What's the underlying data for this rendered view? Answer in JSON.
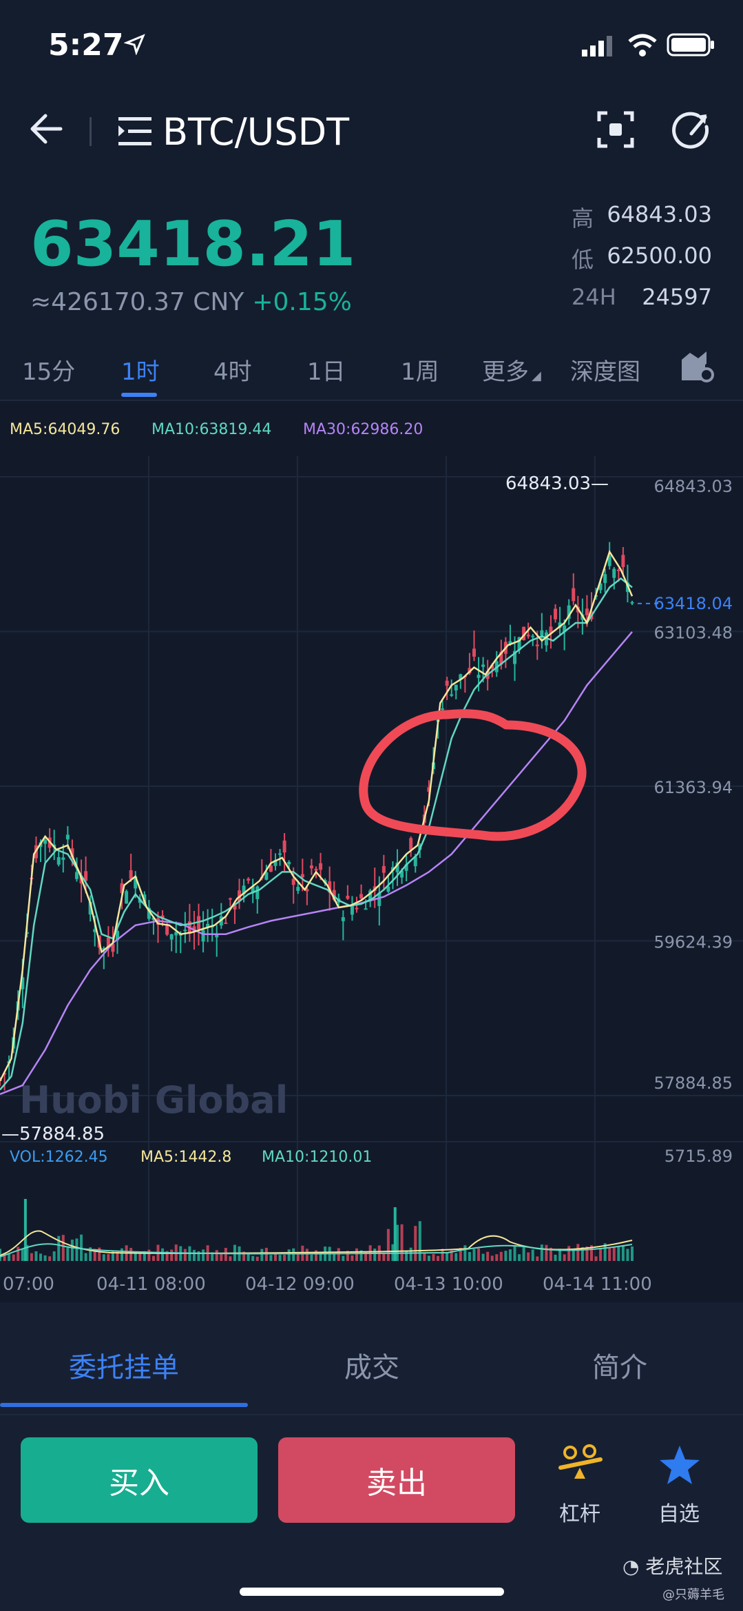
{
  "status_bar": {
    "time": "5:27"
  },
  "header": {
    "pair": "BTC/USDT"
  },
  "ticker": {
    "price": "63418.21",
    "cny": "≈426170.37 CNY",
    "change": "+0.15%",
    "high_label": "高",
    "high": "64843.03",
    "low_label": "低",
    "low": "62500.00",
    "vol_label": "24H",
    "vol": "24597"
  },
  "timeframes": [
    "15分",
    "1时",
    "4时",
    "1日",
    "1周",
    "更多",
    "深度图"
  ],
  "active_timeframe": 1,
  "ma_legend": {
    "ma5": "MA5:64049.76",
    "ma10": "MA10:63819.44",
    "ma30": "MA30:62986.20"
  },
  "watermark": "Huobi Global",
  "vol_legend": {
    "vol": "VOL:1262.45",
    "ma5": "MA5:1442.8",
    "ma10": "MA10:1210.01"
  },
  "chart_data": {
    "type": "candlestick",
    "y_ticks": [
      "64843.03",
      "63103.48",
      "61363.94",
      "59624.39",
      "57884.85"
    ],
    "y_ticks_values": [
      64843.03,
      63103.48,
      61363.94,
      59624.39,
      57884.85
    ],
    "last_price_label": "63418.04",
    "last_price": 63418.04,
    "high_marker": "64843.03",
    "low_marker": "57884.85",
    "vol_axis_max": "5715.89",
    "x_ticks": [
      "07:00",
      "04-11 08:00",
      "04-12 09:00",
      "04-13 10:00",
      "04-14 11:00"
    ],
    "ylim": [
      57884.85,
      64843.03
    ],
    "colors": {
      "up": "#26b59c",
      "down": "#e0495f",
      "ma5": "#f6e79a",
      "ma10": "#62d8c2",
      "ma30": "#b784f5",
      "annotation": "#f04a57"
    },
    "ma5_path": [
      [
        0,
        58050
      ],
      [
        8,
        58300
      ],
      [
        16,
        59300
      ],
      [
        24,
        60600
      ],
      [
        32,
        60800
      ],
      [
        40,
        60650
      ],
      [
        48,
        60700
      ],
      [
        56,
        60400
      ],
      [
        64,
        60050
      ],
      [
        72,
        59500
      ],
      [
        80,
        59600
      ],
      [
        88,
        60250
      ],
      [
        96,
        60350
      ],
      [
        104,
        60000
      ],
      [
        112,
        59820
      ],
      [
        120,
        59800
      ],
      [
        128,
        59700
      ],
      [
        136,
        59720
      ],
      [
        144,
        59760
      ],
      [
        152,
        59800
      ],
      [
        160,
        59900
      ],
      [
        168,
        60100
      ],
      [
        176,
        60200
      ],
      [
        184,
        60300
      ],
      [
        192,
        60500
      ],
      [
        200,
        60560
      ],
      [
        208,
        60350
      ],
      [
        216,
        60200
      ],
      [
        224,
        60400
      ],
      [
        232,
        60250
      ],
      [
        240,
        60000
      ],
      [
        248,
        60020
      ],
      [
        256,
        60080
      ],
      [
        264,
        60180
      ],
      [
        272,
        60300
      ],
      [
        280,
        60450
      ],
      [
        288,
        60600
      ],
      [
        296,
        60700
      ],
      [
        304,
        61200
      ],
      [
        312,
        62300
      ],
      [
        320,
        62500
      ],
      [
        328,
        62580
      ],
      [
        336,
        62700
      ],
      [
        344,
        62620
      ],
      [
        352,
        62800
      ],
      [
        360,
        62950
      ],
      [
        368,
        63000
      ],
      [
        376,
        63150
      ],
      [
        384,
        63000
      ],
      [
        392,
        63100
      ],
      [
        400,
        63200
      ],
      [
        408,
        63400
      ],
      [
        416,
        63200
      ],
      [
        424,
        63600
      ],
      [
        432,
        64000
      ],
      [
        440,
        63800
      ],
      [
        448,
        63500
      ]
    ],
    "ma10_path": [
      [
        0,
        57950
      ],
      [
        8,
        58100
      ],
      [
        16,
        58700
      ],
      [
        24,
        59800
      ],
      [
        32,
        60500
      ],
      [
        40,
        60650
      ],
      [
        48,
        60600
      ],
      [
        56,
        60400
      ],
      [
        64,
        60200
      ],
      [
        72,
        59700
      ],
      [
        80,
        59650
      ],
      [
        88,
        59950
      ],
      [
        96,
        60150
      ],
      [
        104,
        60000
      ],
      [
        112,
        59900
      ],
      [
        120,
        59850
      ],
      [
        128,
        59800
      ],
      [
        136,
        59820
      ],
      [
        144,
        59850
      ],
      [
        152,
        59900
      ],
      [
        160,
        59960
      ],
      [
        168,
        60050
      ],
      [
        176,
        60150
      ],
      [
        184,
        60200
      ],
      [
        192,
        60300
      ],
      [
        200,
        60400
      ],
      [
        208,
        60400
      ],
      [
        216,
        60300
      ],
      [
        224,
        60250
      ],
      [
        232,
        60200
      ],
      [
        240,
        60080
      ],
      [
        248,
        60020
      ],
      [
        256,
        60040
      ],
      [
        264,
        60100
      ],
      [
        272,
        60200
      ],
      [
        280,
        60330
      ],
      [
        288,
        60480
      ],
      [
        296,
        60600
      ],
      [
        304,
        60900
      ],
      [
        312,
        61400
      ],
      [
        320,
        61900
      ],
      [
        328,
        62200
      ],
      [
        336,
        62450
      ],
      [
        344,
        62600
      ],
      [
        352,
        62700
      ],
      [
        360,
        62800
      ],
      [
        368,
        62900
      ],
      [
        376,
        63000
      ],
      [
        384,
        63050
      ],
      [
        392,
        63000
      ],
      [
        400,
        63100
      ],
      [
        408,
        63200
      ],
      [
        416,
        63200
      ],
      [
        424,
        63400
      ],
      [
        432,
        63600
      ],
      [
        440,
        63700
      ],
      [
        448,
        63600
      ]
    ],
    "ma30_path": [
      [
        0,
        57900
      ],
      [
        16,
        58000
      ],
      [
        32,
        58400
      ],
      [
        48,
        58900
      ],
      [
        64,
        59300
      ],
      [
        80,
        59600
      ],
      [
        96,
        59800
      ],
      [
        112,
        59850
      ],
      [
        128,
        59820
      ],
      [
        144,
        59700
      ],
      [
        160,
        59700
      ],
      [
        176,
        59780
      ],
      [
        192,
        59850
      ],
      [
        208,
        59900
      ],
      [
        224,
        59950
      ],
      [
        240,
        60000
      ],
      [
        256,
        60050
      ],
      [
        272,
        60120
      ],
      [
        288,
        60250
      ],
      [
        304,
        60400
      ],
      [
        320,
        60600
      ],
      [
        336,
        60900
      ],
      [
        352,
        61200
      ],
      [
        368,
        61500
      ],
      [
        384,
        61800
      ],
      [
        400,
        62100
      ],
      [
        416,
        62500
      ],
      [
        432,
        62800
      ],
      [
        448,
        63100
      ]
    ]
  },
  "bottom_tabs": [
    "委托挂单",
    "成交",
    "简介"
  ],
  "buttons": {
    "buy": "买入",
    "sell": "卖出",
    "leverage": "杠杆",
    "favorite": "自选"
  },
  "footer_watermark": {
    "brand": "老虎社区",
    "user": "@只薅羊毛"
  }
}
